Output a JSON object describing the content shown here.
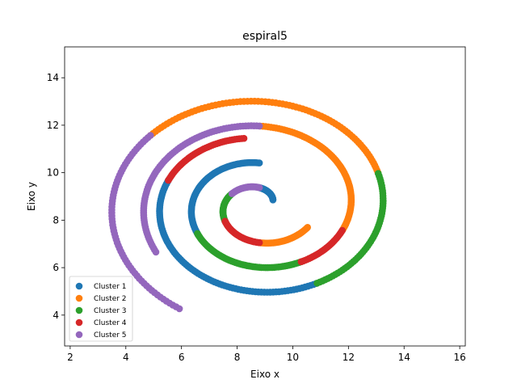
{
  "chart_data": {
    "type": "scatter",
    "title": "espiral5",
    "xlabel": "Eixo x",
    "ylabel": "Eixo y",
    "xlim": [
      1.8,
      16.2
    ],
    "ylim": [
      2.7,
      15.3
    ],
    "xticks": [
      2,
      4,
      6,
      8,
      10,
      12,
      14,
      16
    ],
    "yticks": [
      4,
      6,
      8,
      10,
      12,
      14
    ],
    "grid": false,
    "legend_position": "bottom-left",
    "spiral": {
      "center": [
        8.8,
        8.6
      ],
      "arms": 3,
      "arm_offset_deg": 120,
      "theta_start_deg": 30,
      "theta_end_deg": 780,
      "step_deg": 1.5
    },
    "series": [
      {
        "name": "Cluster 1",
        "color": "#1f77b4",
        "arcs": [
          {
            "arm": 0,
            "from": 30,
            "to": 90
          },
          {
            "arm": 1,
            "from": 330,
            "to": 450
          },
          {
            "arm": 2,
            "from": 640,
            "to": 780
          }
        ]
      },
      {
        "name": "Cluster 2",
        "color": "#ff7f0e",
        "arcs": [
          {
            "arm": 0,
            "from": 270,
            "to": 330
          },
          {
            "arm": 1,
            "from": 580,
            "to": 690
          },
          {
            "arm": 2,
            "from": 860,
            "to": 980
          }
        ]
      },
      {
        "name": "Cluster 3",
        "color": "#2ca02c",
        "arcs": [
          {
            "arm": 0,
            "from": 150,
            "to": 210
          },
          {
            "arm": 1,
            "from": 450,
            "to": 540
          },
          {
            "arm": 2,
            "from": 780,
            "to": 860
          }
        ]
      },
      {
        "name": "Cluster 4",
        "color": "#d62728",
        "arcs": [
          {
            "arm": 0,
            "from": 210,
            "to": 270
          },
          {
            "arm": 1,
            "from": 540,
            "to": 580
          },
          {
            "arm": 2,
            "from": 580,
            "to": 640
          }
        ]
      },
      {
        "name": "Cluster 5",
        "color": "#9467bd",
        "arcs": [
          {
            "arm": 0,
            "from": 90,
            "to": 150
          },
          {
            "arm": 1,
            "from": 690,
            "to": 810
          },
          {
            "arm": 2,
            "from": 980,
            "to": 1080
          }
        ]
      }
    ]
  }
}
